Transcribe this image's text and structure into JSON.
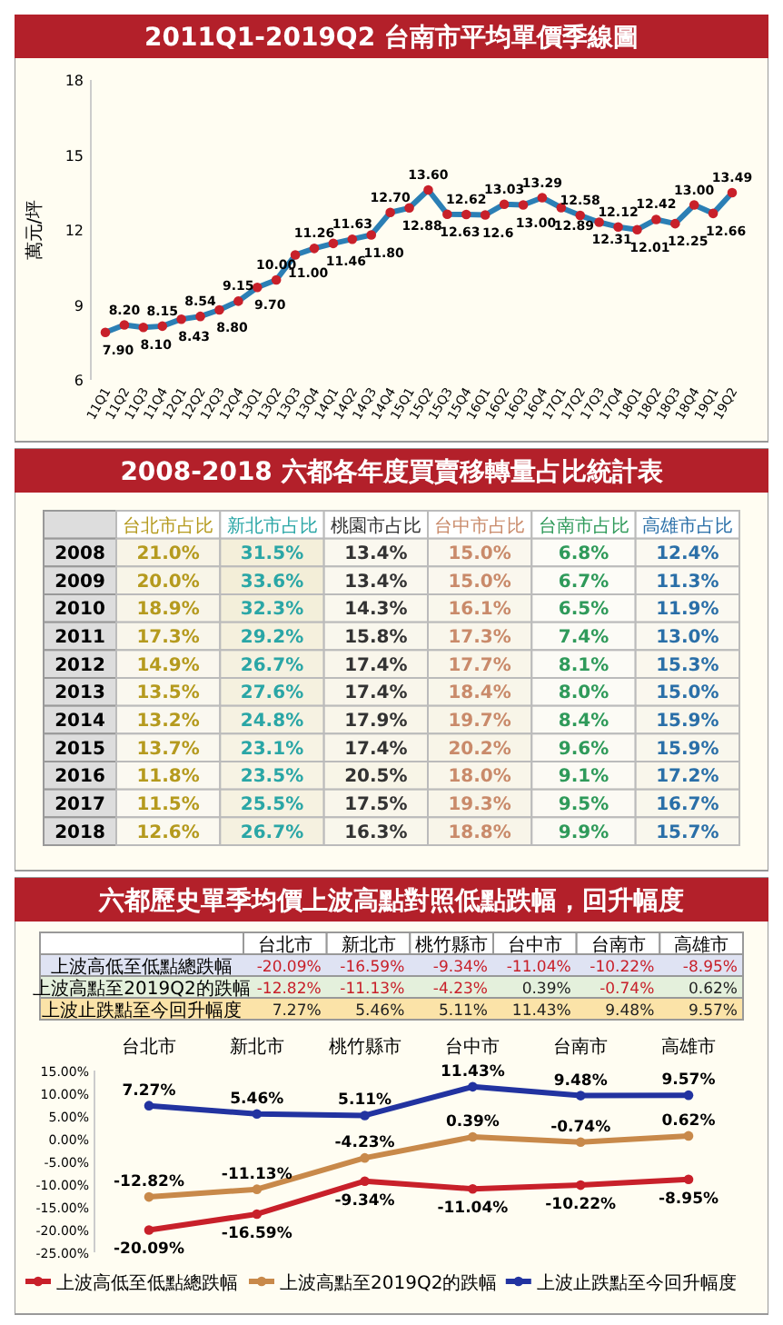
{
  "chart_data": [
    {
      "type": "line",
      "title": "2011Q1-2019Q2 台南市平均單價季線圖",
      "ylabel": "萬元/坪",
      "color": "#2b7fb5",
      "marker": "circle",
      "ylim": [
        6,
        18
      ],
      "yticks": [
        6,
        9,
        12,
        15,
        18
      ],
      "categories": [
        "11Q1",
        "11Q2",
        "11Q3",
        "11Q4",
        "12Q1",
        "12Q2",
        "12Q3",
        "12Q4",
        "13Q1",
        "13Q2",
        "13Q3",
        "13Q4",
        "14Q1",
        "14Q2",
        "14Q3",
        "14Q4",
        "15Q1",
        "15Q2",
        "15Q3",
        "15Q4",
        "16Q1",
        "16Q2",
        "16Q3",
        "16Q4",
        "17Q1",
        "17Q2",
        "17Q3",
        "17Q4",
        "18Q1",
        "18Q2",
        "18Q3",
        "18Q4",
        "19Q1",
        "19Q2"
      ],
      "values": [
        7.9,
        8.2,
        8.1,
        8.15,
        8.43,
        8.54,
        8.8,
        9.15,
        9.7,
        10.0,
        11.0,
        11.26,
        11.46,
        11.63,
        11.8,
        12.7,
        12.88,
        13.6,
        12.63,
        12.62,
        12.6,
        13.03,
        13.0,
        13.29,
        12.89,
        12.58,
        12.31,
        12.12,
        12.01,
        12.42,
        12.25,
        13.0,
        12.66,
        13.49
      ],
      "value_labels": [
        "7.90",
        "8.20",
        "8.10",
        "8.15",
        "8.43",
        "8.54",
        "8.80",
        "9.15",
        "9.70",
        "10.00",
        "11.00",
        "11.26",
        "11.46",
        "11.63",
        "11.80",
        "12.70",
        "12.88",
        "13.60",
        "12.63",
        "12.62",
        "12.6",
        "13.03",
        "13.00",
        "13.29",
        "12.89",
        "12.58",
        "12.31",
        "12.12",
        "12.01",
        "12.42",
        "12.25",
        "13.00",
        "12.66",
        "13.49"
      ]
    },
    {
      "type": "heatmap",
      "title": "2008-2018 六都各年度買賣移轉量占比統計表",
      "categories": [
        "台北市占比",
        "新北市占比",
        "桃園市占比",
        "台中市占比",
        "台南市占比",
        "高雄市占比"
      ],
      "colors": [
        "#b59a1e",
        "#2aa6a6",
        "#333333",
        "#c98a6a",
        "#2f9a5a",
        "#2a6fa8"
      ],
      "y_categories": [
        "2008",
        "2009",
        "2010",
        "2011",
        "2012",
        "2013",
        "2014",
        "2015",
        "2016",
        "2017",
        "2018"
      ],
      "cells": [
        [
          21.0,
          31.5,
          13.4,
          15.0,
          6.8,
          12.4
        ],
        [
          20.0,
          33.6,
          13.4,
          15.0,
          6.7,
          11.3
        ],
        [
          18.9,
          32.3,
          14.3,
          16.1,
          6.5,
          11.9
        ],
        [
          17.3,
          29.2,
          15.8,
          17.3,
          7.4,
          13.0
        ],
        [
          14.9,
          26.7,
          17.4,
          17.7,
          8.1,
          15.3
        ],
        [
          13.5,
          27.6,
          17.4,
          18.4,
          8.0,
          15.0
        ],
        [
          13.2,
          24.8,
          17.9,
          19.7,
          8.4,
          15.9
        ],
        [
          13.7,
          23.1,
          17.4,
          20.2,
          9.6,
          15.9
        ],
        [
          11.8,
          23.5,
          20.5,
          18.0,
          9.1,
          17.2
        ],
        [
          11.5,
          25.5,
          17.5,
          19.3,
          9.5,
          16.7
        ],
        [
          12.6,
          26.7,
          16.3,
          18.8,
          9.9,
          15.7
        ]
      ],
      "cell_labels": [
        [
          "21.0%",
          "31.5%",
          "13.4%",
          "15.0%",
          "6.8%",
          "12.4%"
        ],
        [
          "20.0%",
          "33.6%",
          "13.4%",
          "15.0%",
          "6.7%",
          "11.3%"
        ],
        [
          "18.9%",
          "32.3%",
          "14.3%",
          "16.1%",
          "6.5%",
          "11.9%"
        ],
        [
          "17.3%",
          "29.2%",
          "15.8%",
          "17.3%",
          "7.4%",
          "13.0%"
        ],
        [
          "14.9%",
          "26.7%",
          "17.4%",
          "17.7%",
          "8.1%",
          "15.3%"
        ],
        [
          "13.5%",
          "27.6%",
          "17.4%",
          "18.4%",
          "8.0%",
          "15.0%"
        ],
        [
          "13.2%",
          "24.8%",
          "17.9%",
          "19.7%",
          "8.4%",
          "15.9%"
        ],
        [
          "13.7%",
          "23.1%",
          "17.4%",
          "20.2%",
          "9.6%",
          "15.9%"
        ],
        [
          "11.8%",
          "23.5%",
          "20.5%",
          "18.0%",
          "9.1%",
          "17.2%"
        ],
        [
          "11.5%",
          "25.5%",
          "17.5%",
          "19.3%",
          "9.5%",
          "16.7%"
        ],
        [
          "12.6%",
          "26.7%",
          "16.3%",
          "18.8%",
          "9.9%",
          "15.7%"
        ]
      ]
    },
    {
      "type": "line",
      "title": "六都歷史單季均價上波高點對照低點跌幅，回升幅度",
      "legend": "bottom",
      "marker": "circle",
      "categories": [
        "台北市",
        "新北市",
        "桃竹縣市",
        "台中市",
        "台南市",
        "高雄市"
      ],
      "ylim": [
        -25,
        15
      ],
      "yticks": [
        {
          "value": -25,
          "label": "-25.00%"
        },
        {
          "value": -20,
          "label": "-20.00%"
        },
        {
          "value": -15,
          "label": "-15.00%"
        },
        {
          "value": -10,
          "label": "-10.00%"
        },
        {
          "value": -5,
          "label": "-5.00%"
        },
        {
          "value": 0,
          "label": "0.00%"
        },
        {
          "value": 5,
          "label": "5.00%"
        },
        {
          "value": 10,
          "label": "10.00%"
        },
        {
          "value": 15,
          "label": "15.00%"
        }
      ],
      "series": [
        {
          "name": "上波高低至低點總跌幅",
          "color": "#c8202a",
          "values": [
            -20.09,
            -16.59,
            -9.34,
            -11.04,
            -10.22,
            -8.95
          ],
          "value_labels": [
            "-20.09%",
            "-16.59%",
            "-9.34%",
            "-11.04%",
            "-10.22%",
            "-8.95%"
          ]
        },
        {
          "name": "上波高點至2019Q2的跌幅",
          "color": "#c8894a",
          "values": [
            -12.82,
            -11.13,
            -4.23,
            0.39,
            -0.74,
            0.62
          ],
          "value_labels": [
            "-12.82%",
            "-11.13%",
            "-4.23%",
            "0.39%",
            "-0.74%",
            "0.62%"
          ]
        },
        {
          "name": "上波止跌點至今回升幅度",
          "color": "#2233a0",
          "values": [
            7.27,
            5.46,
            5.11,
            11.43,
            9.48,
            9.57
          ],
          "value_labels": [
            "7.27%",
            "5.46%",
            "5.11%",
            "11.43%",
            "9.48%",
            "9.57%"
          ]
        }
      ]
    }
  ]
}
